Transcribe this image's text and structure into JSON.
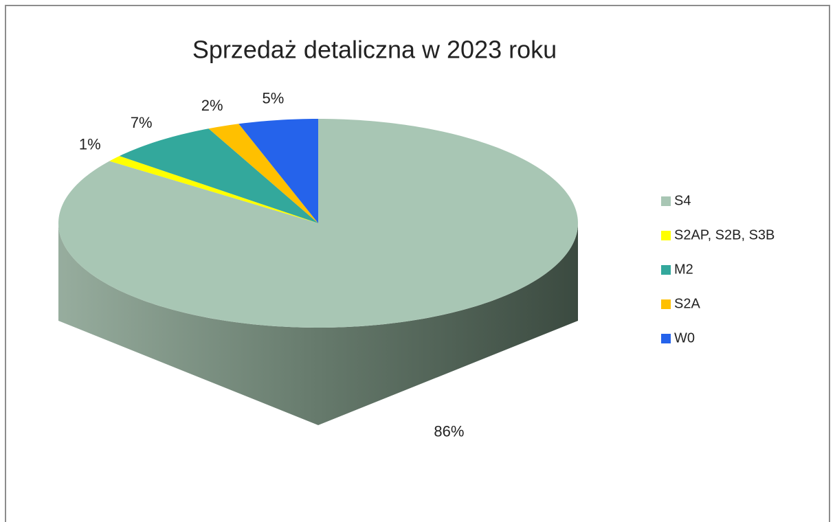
{
  "chart_data": {
    "type": "pie",
    "title": "Sprzedaż detaliczna w 2023 roku",
    "categories": [
      "S4",
      "S2AP, S2B, S3B",
      "M2",
      "S2A",
      "W0"
    ],
    "values": [
      86,
      1,
      7,
      2,
      5
    ],
    "value_labels": [
      "86%",
      "1%",
      "7%",
      "2%",
      "5%"
    ],
    "colors": [
      "#a8c6b4",
      "#ffff00",
      "#33a89c",
      "#ffc000",
      "#2563eb"
    ],
    "legend": "right"
  }
}
